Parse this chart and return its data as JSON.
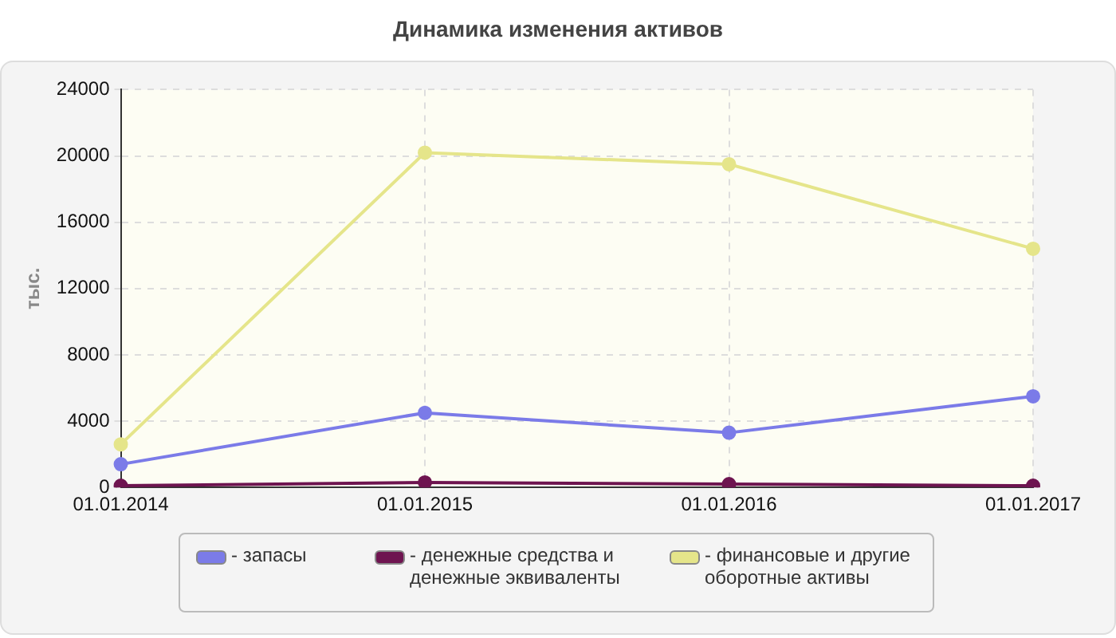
{
  "chart_data": {
    "type": "line",
    "title": "Динамика изменения активов",
    "ylabel": "тыс.",
    "categories": [
      "01.01.2014",
      "01.01.2015",
      "01.01.2016",
      "01.01.2017"
    ],
    "series": [
      {
        "name": "- запасы",
        "color": "#7b7be8",
        "values": [
          1400,
          4500,
          3300,
          5500
        ]
      },
      {
        "name": "- денежные средства и денежные эквиваленты",
        "color": "#6e1450",
        "values": [
          100,
          300,
          200,
          100
        ]
      },
      {
        "name": "- финансовые и другие оборотные активы",
        "color": "#e5e58a",
        "values": [
          2600,
          20200,
          19500,
          14400
        ]
      }
    ],
    "ylim": [
      0,
      24000
    ],
    "yticks": [
      0,
      4000,
      8000,
      12000,
      16000,
      20000,
      24000
    ],
    "grid": true,
    "legend": "bottom",
    "marker": "circle",
    "line_style": "solid"
  }
}
